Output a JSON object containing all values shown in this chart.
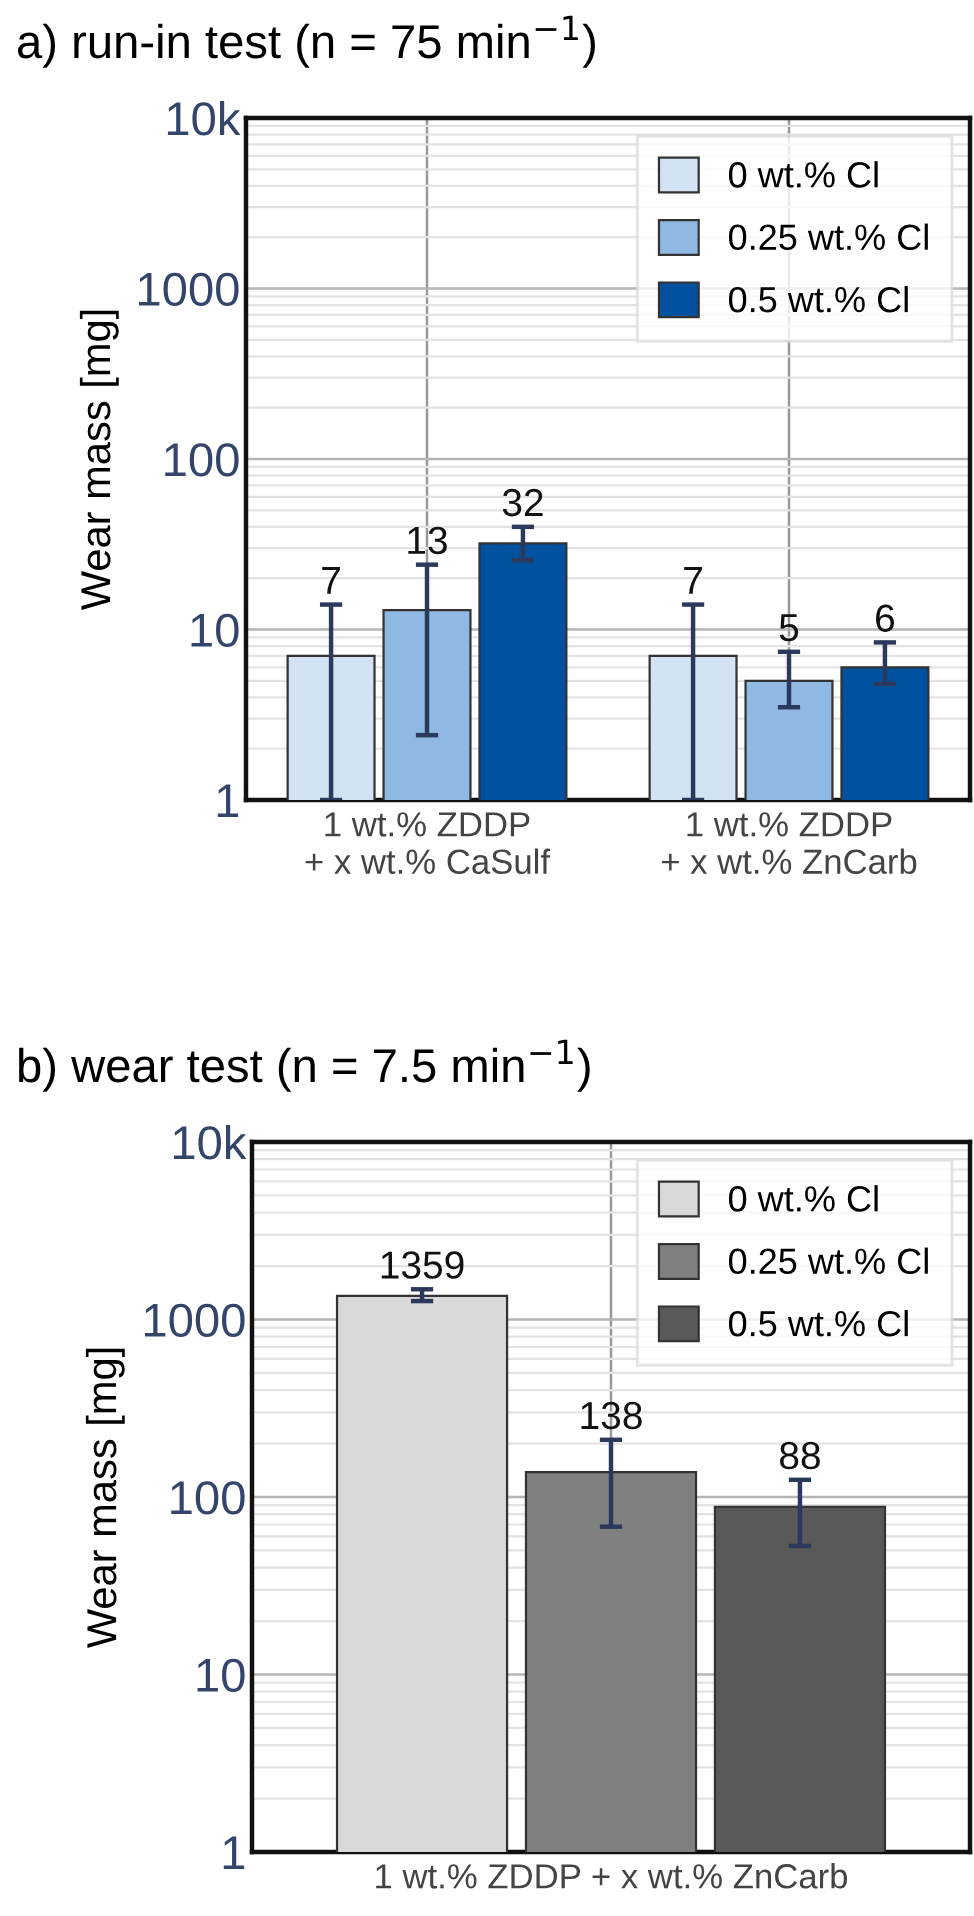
{
  "chart_data": [
    {
      "type": "bar",
      "title": "a) run-in test (n = 75 min$^{−1}$)",
      "ylabel": "Wear mass [mg]",
      "categories": [
        "1 wt.% ZDDP\n+ x wt.% CaSulf",
        "1 wt.% ZDDP\n+ x wt.% ZnCarb"
      ],
      "series": [
        {
          "name": "0 wt.% Cl",
          "color": "#d3e3f4",
          "values": [
            7,
            7
          ],
          "errors": [
            [
              1,
              14
            ],
            [
              1,
              14
            ]
          ]
        },
        {
          "name": "0.25 wt.% Cl",
          "color": "#8fb8e3",
          "values": [
            13,
            5
          ],
          "errors": [
            [
              2.4,
              24
            ],
            [
              3.5,
              7.4
            ]
          ]
        },
        {
          "name": "0.5 wt.% Cl",
          "color": "#0052a0",
          "values": [
            32,
            6
          ],
          "errors": [
            [
              25.5,
              40
            ],
            [
              4.8,
              8.4
            ]
          ]
        }
      ],
      "log": "y",
      "ylim": [
        1,
        10000
      ],
      "yticks": [
        1,
        10,
        100,
        1000,
        {
          "value": 10000,
          "label": "10k"
        }
      ],
      "grid": true,
      "legend": "top right",
      "data_labels": true
    },
    {
      "type": "bar",
      "title": "b) wear test (n = 7.5 min$^{−1}$)",
      "ylabel": "Wear mass [mg]",
      "categories": [
        null,
        "1 wt.% ZDDP + x wt.% ZnCarb",
        null
      ],
      "series": [
        {
          "name": "0 wt.% Cl",
          "color": "#d9d9d9",
          "values": [
            1359,
            null,
            null
          ],
          "errors": [
            [
              1270,
              1480
            ],
            null,
            null
          ]
        },
        {
          "name": "0.25 wt.% Cl",
          "color": "#808080",
          "values": [
            null,
            138,
            null
          ],
          "errors": [
            null,
            [
              68,
              210
            ],
            null
          ]
        },
        {
          "name": "0.5 wt.% Cl",
          "color": "#595959",
          "values": [
            null,
            null,
            88
          ],
          "errors": [
            null,
            null,
            [
              53,
              125
            ]
          ]
        }
      ],
      "log": "y",
      "ylim": [
        1,
        10000
      ],
      "yticks": [
        1,
        10,
        100,
        1000,
        {
          "value": 10000,
          "label": "10k"
        }
      ],
      "grid": true,
      "legend": "top right",
      "data_labels": true
    }
  ]
}
